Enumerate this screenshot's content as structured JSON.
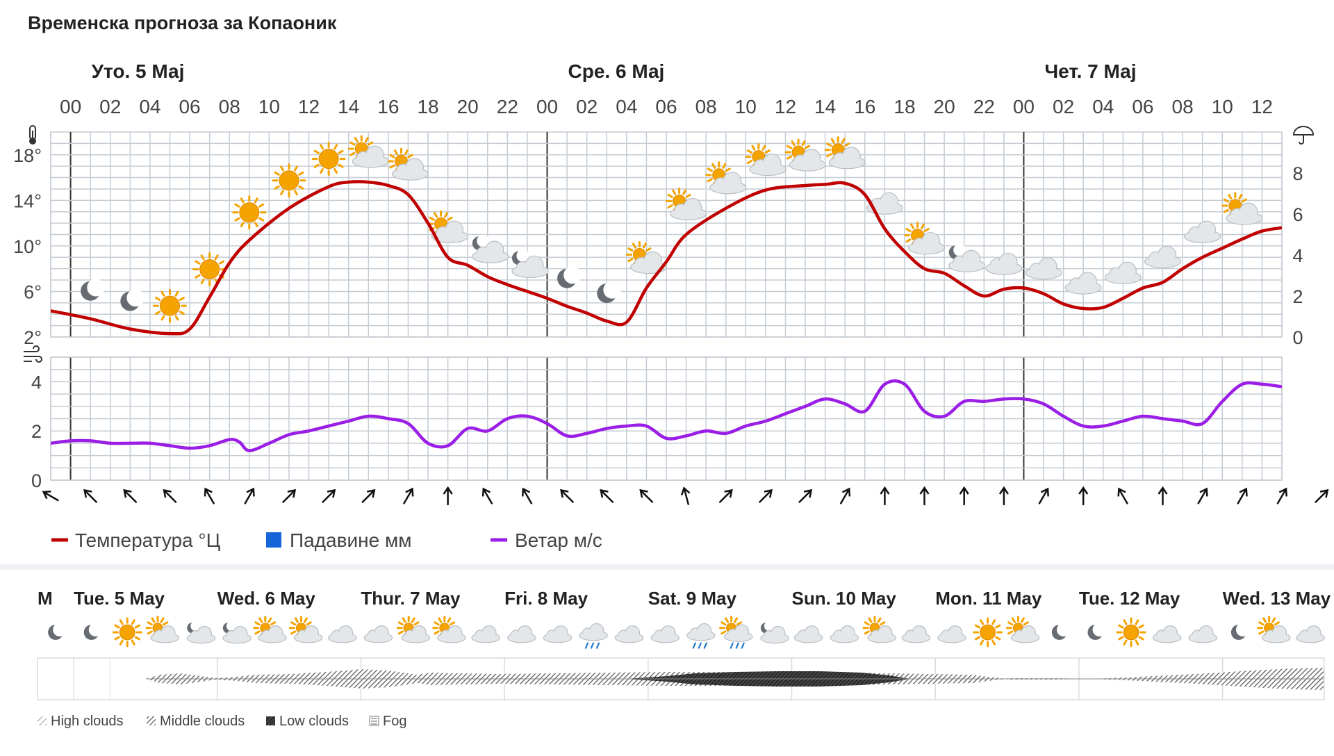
{
  "title": "Временска прогноза за Копаоник",
  "colors": {
    "temperature": "#c00000",
    "precipitation": "#1565d8",
    "wind": "#9a1ee6",
    "grid": "#c5ccd3",
    "sun": "#f5a300",
    "cloud": "#e4e7ea",
    "moon": "#666c72"
  },
  "chart_data": [
    {
      "type": "line",
      "title": "",
      "days": [
        "Уто. 5 Мај",
        "Сре. 6 Мај",
        "Чет. 7 Мај"
      ],
      "hour_ticks": [
        "00",
        "02",
        "04",
        "06",
        "08",
        "10",
        "12",
        "14",
        "16",
        "18",
        "20",
        "22",
        "00",
        "02",
        "04",
        "06",
        "08",
        "10",
        "12",
        "14",
        "16",
        "18",
        "20",
        "22",
        "00",
        "02",
        "04",
        "06",
        "08",
        "10",
        "12"
      ],
      "x_unit": "hours since Уто. 5 Мај 00:00",
      "xlim": [
        -1,
        61
      ],
      "y_left_ticks": [
        "2°",
        "6°",
        "10°",
        "14°",
        "18°"
      ],
      "y_left_lim": [
        2,
        20
      ],
      "y_right_ticks": [
        "0",
        "2",
        "4",
        "6",
        "8"
      ],
      "y_right_lim": [
        0,
        10
      ],
      "series": [
        {
          "name": "Температура °Ц",
          "x": [
            -1,
            1,
            3,
            5,
            6,
            7,
            8,
            9,
            11,
            13,
            14,
            15,
            16,
            17,
            18,
            19,
            20,
            21,
            22,
            23,
            24,
            25,
            26,
            27,
            28,
            29,
            30,
            31,
            33,
            35,
            37,
            38,
            39,
            40,
            41,
            42,
            43,
            44,
            45,
            46,
            47,
            48,
            49,
            50,
            51,
            52,
            53,
            54,
            55,
            56,
            57,
            58,
            59,
            60,
            61
          ],
          "values": [
            4.3,
            3.6,
            2.7,
            2.3,
            2.7,
            5.5,
            8.5,
            10.5,
            13.3,
            15.2,
            15.6,
            15.6,
            15.3,
            14.5,
            12,
            9,
            8.3,
            7.3,
            6.6,
            6,
            5.4,
            4.7,
            4.1,
            3.4,
            3.3,
            6.3,
            8.6,
            11,
            13.3,
            14.9,
            15.3,
            15.4,
            15.5,
            14.5,
            11.5,
            9.5,
            8,
            7.6,
            6.5,
            5.6,
            6.2,
            6.3,
            5.8,
            4.9,
            4.5,
            4.6,
            5.4,
            6.3,
            6.8,
            8,
            9,
            9.8,
            10.6,
            11.3,
            11.6
          ]
        },
        {
          "name": "Падавине мм",
          "values": []
        }
      ]
    },
    {
      "type": "line",
      "title": "",
      "x_unit": "hours since Уто. 5 Мај 00:00",
      "xlim": [
        -1,
        61
      ],
      "y_ticks": [
        "0",
        "2",
        "4"
      ],
      "y_lim": [
        0,
        5
      ],
      "series": [
        {
          "name": "Ветар м/с",
          "x": [
            -1,
            0,
            1,
            2,
            3,
            4,
            5,
            6,
            7,
            8,
            8.5,
            9,
            10,
            11,
            12,
            13,
            14,
            15,
            16,
            17,
            18,
            19,
            20,
            21,
            22,
            23,
            24,
            25,
            26,
            27,
            28,
            29,
            30,
            31,
            32,
            33,
            34,
            35,
            36,
            37,
            38,
            39,
            40,
            41,
            42,
            43,
            44,
            45,
            46,
            47,
            48,
            49,
            50,
            51,
            52,
            53,
            54,
            55,
            56,
            57,
            58,
            59,
            60,
            61
          ],
          "values": [
            1.5,
            1.6,
            1.6,
            1.5,
            1.5,
            1.5,
            1.4,
            1.3,
            1.4,
            1.65,
            1.55,
            1.2,
            1.5,
            1.85,
            2.0,
            2.2,
            2.4,
            2.6,
            2.5,
            2.3,
            1.5,
            1.4,
            2.1,
            2.0,
            2.5,
            2.6,
            2.3,
            1.8,
            1.9,
            2.1,
            2.2,
            2.2,
            1.7,
            1.8,
            2.0,
            1.9,
            2.2,
            2.4,
            2.7,
            3.0,
            3.3,
            3.1,
            2.8,
            3.9,
            3.9,
            2.8,
            2.6,
            3.2,
            3.2,
            3.3,
            3.3,
            3.1,
            2.6,
            2.2,
            2.2,
            2.4,
            2.6,
            2.5,
            2.4,
            2.3,
            3.2,
            3.9,
            3.9,
            3.8
          ]
        }
      ]
    }
  ],
  "wind_arrow_directions_deg": [
    300,
    315,
    315,
    315,
    330,
    30,
    45,
    45,
    45,
    30,
    0,
    330,
    330,
    315,
    315,
    315,
    345,
    45,
    45,
    45,
    30,
    0,
    0,
    0,
    0,
    30,
    0,
    330,
    0,
    30,
    30,
    30,
    45
  ],
  "weather_icons": [
    "moon",
    "moon",
    "sun",
    "sun",
    "sun",
    "sun",
    "sun",
    "sun-cloud",
    "sun-cloud",
    "sun-cloud",
    "moon-cloud",
    "moon-cloud",
    "moon",
    "moon",
    "sun-cloud",
    "sun-cloud",
    "sun-cloud",
    "sun-cloud",
    "sun-cloud",
    "sun-cloud",
    "cloud",
    "sun-cloud",
    "moon-cloud",
    "cloud",
    "cloud",
    "cloud",
    "cloud",
    "cloud",
    "cloud",
    "sun-cloud"
  ],
  "legend": {
    "temperature": "Температура °Ц",
    "precipitation": "Падавине мм",
    "wind": "Ветар м/с"
  },
  "weekly": {
    "partial_day_label": "M",
    "days": [
      "Tue. 5 May",
      "Wed. 6 May",
      "Thur. 7 May",
      "Fri. 8 May",
      "Sat. 9 May",
      "Sun. 10 May",
      "Mon. 11 May",
      "Tue. 12 May",
      "Wed. 13 May"
    ],
    "icons": [
      "moon",
      "moon",
      "sun",
      "sun-cloud",
      "moon-cloud",
      "moon-cloud",
      "sun-cloud",
      "sun-cloud",
      "cloud",
      "cloud",
      "sun-cloud",
      "sun-cloud",
      "cloud",
      "cloud",
      "cloud",
      "rain",
      "cloud",
      "cloud",
      "rain",
      "sun-rain",
      "moon-cloud",
      "cloud",
      "cloud",
      "sun-cloud",
      "cloud",
      "cloud",
      "sun",
      "sun-cloud",
      "moon",
      "moon",
      "sun",
      "cloud",
      "cloud",
      "moon",
      "sun-cloud",
      "cloud"
    ],
    "cloud_legend": [
      "High clouds",
      "Middle clouds",
      "Low clouds",
      "Fog"
    ]
  }
}
